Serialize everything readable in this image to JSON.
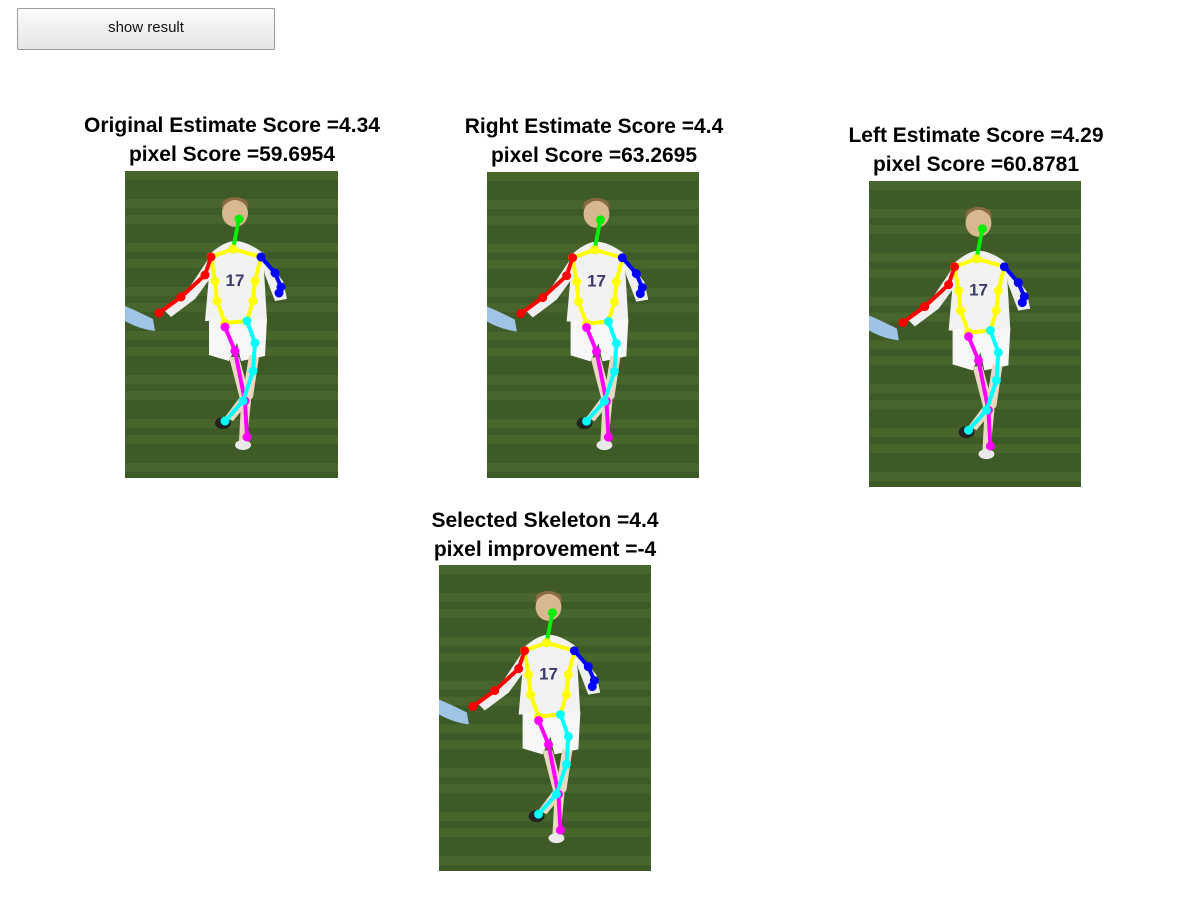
{
  "toolbar": {
    "show_result_label": "show result"
  },
  "panels": {
    "original": {
      "title": "Original Estimate Score =4.34",
      "subtitle": "pixel Score =59.6954"
    },
    "right": {
      "title": "Right Estimate Score =4.4",
      "subtitle": "pixel Score =63.2695"
    },
    "left": {
      "title": "Left Estimate Score =4.29",
      "subtitle": "pixel Score =60.8781"
    },
    "selected": {
      "title": "Selected Skeleton =4.4",
      "subtitle": "pixel improvement =-4"
    }
  },
  "photo": {
    "jersey_number": "17"
  },
  "colors": {
    "head": "#00ee00",
    "torso": "#ffff00",
    "right_arm": "#ff0000",
    "left_arm": "#0000ff",
    "right_leg": "#ff00ff",
    "left_leg": "#00ffff",
    "grass_dark": "#3e5a26",
    "grass_light": "#5b7a3a"
  }
}
